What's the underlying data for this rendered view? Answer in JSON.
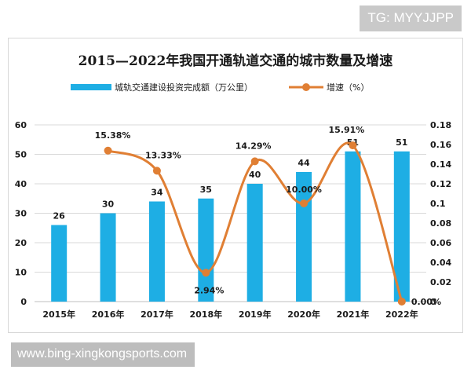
{
  "watermark_top": "TG: MYYJJPP",
  "watermark_bottom": "www.bing-xingkongsports.com",
  "colors": {
    "bar": "#1eaee4",
    "line": "#e07f34",
    "grid": "#d9d9d9"
  },
  "chart_data": {
    "type": "bar",
    "title": "2015—2022年我国开通轨道交通的城市数量及增速",
    "categories": [
      "2015年",
      "2016年",
      "2017年",
      "2018年",
      "2019年",
      "2020年",
      "2021年",
      "2022年"
    ],
    "series": [
      {
        "name": "城轨交通建设投资完成额（万公里）",
        "type": "bar",
        "axis": "left",
        "values": [
          26,
          30,
          34,
          35,
          40,
          44,
          51,
          51
        ],
        "labels": [
          "26",
          "30",
          "34",
          "35",
          "40",
          "44",
          "51",
          "51"
        ]
      },
      {
        "name": "增速（%）",
        "type": "line",
        "smooth": true,
        "axis": "right",
        "values": [
          null,
          0.1538,
          0.1333,
          0.0294,
          0.1429,
          0.1,
          0.1591,
          0.0
        ],
        "labels": [
          "",
          "15.38%",
          "13.33%",
          "2.94%",
          "14.29%",
          "10.00%",
          "15.91%",
          "0.00%"
        ]
      }
    ],
    "left_axis": {
      "ylim": [
        0,
        60
      ],
      "ticks": [
        "0",
        "10",
        "20",
        "30",
        "40",
        "50",
        "60"
      ]
    },
    "right_axis": {
      "ylim": [
        0,
        0.18
      ],
      "ticks": [
        "0",
        "0.02",
        "0.04",
        "0.06",
        "0.08",
        "0.1",
        "0.12",
        "0.14",
        "0.16",
        "0.18"
      ]
    },
    "grid": true,
    "legend_position": "top"
  }
}
